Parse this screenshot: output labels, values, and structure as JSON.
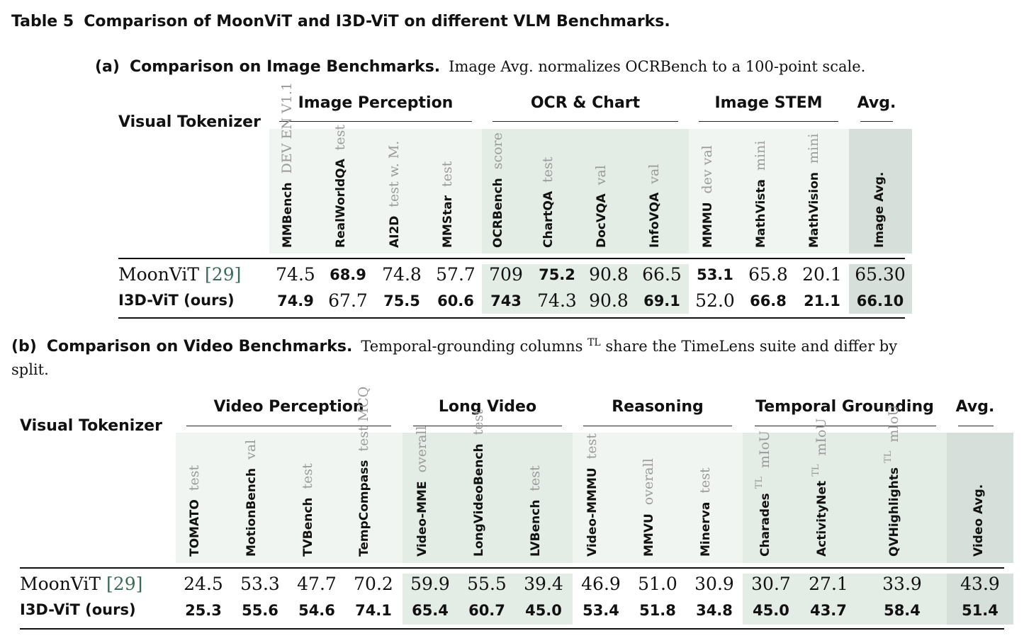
{
  "caption": {
    "label": "Table 5",
    "title": "Comparison of MoonViT and I3D-ViT on different VLM Benchmarks."
  },
  "image_table": {
    "tag": "(a)",
    "title": "Comparison on Image Benchmarks.",
    "description": "Image Avg. normalizes OCRBench to a 100-point scale.",
    "row_header": "Visual Tokenizer",
    "groups": [
      "Image Perception",
      "OCR & Chart",
      "Image STEM",
      "Avg."
    ],
    "columns": [
      {
        "name": "MMBench",
        "split": "DEV EN V1.1"
      },
      {
        "name": "RealWorldQA",
        "split": "test"
      },
      {
        "name": "AI2D",
        "split": "test w. M."
      },
      {
        "name": "MMStar",
        "split": "test"
      },
      {
        "name": "OCRBench",
        "split": "score"
      },
      {
        "name": "ChartQA",
        "split": "test"
      },
      {
        "name": "DocVQA",
        "split": "val"
      },
      {
        "name": "InfoVQA",
        "split": "val"
      },
      {
        "name": "MMMU",
        "split": "dev val"
      },
      {
        "name": "MathVista",
        "split": "mini"
      },
      {
        "name": "MathVision",
        "split": "mini"
      },
      {
        "name": "Image Avg.",
        "split": ""
      }
    ],
    "rows": [
      {
        "name": "MoonViT",
        "cite": "[29]",
        "values": [
          "74.5",
          "68.9",
          "74.8",
          "57.7",
          "709",
          "75.2",
          "90.8",
          "66.5",
          "53.1",
          "65.8",
          "20.1",
          "65.30"
        ],
        "bold": [
          false,
          true,
          false,
          false,
          false,
          true,
          false,
          false,
          true,
          false,
          false,
          false
        ]
      },
      {
        "name": "I3D-ViT (ours)",
        "cite": "",
        "values": [
          "74.9",
          "67.7",
          "75.5",
          "60.6",
          "743",
          "74.3",
          "90.8",
          "69.1",
          "52.0",
          "66.8",
          "21.1",
          "66.10"
        ],
        "bold": [
          true,
          false,
          true,
          true,
          true,
          false,
          false,
          true,
          false,
          true,
          true,
          true
        ]
      }
    ]
  },
  "video_table": {
    "tag": "(b)",
    "title": "Comparison on Video Benchmarks.",
    "description_pre": "Temporal-grounding columns",
    "sup_marker": "TL",
    "description_post": "share the TimeLens suite and differ by",
    "description_cont": "split.",
    "row_header": "Visual Tokenizer",
    "groups": [
      "Video Perception",
      "Long Video",
      "Reasoning",
      "Temporal Grounding",
      "Avg."
    ],
    "columns": [
      {
        "name": "TOMATO",
        "split": "test",
        "tl": ""
      },
      {
        "name": "MotionBench",
        "split": "val",
        "tl": ""
      },
      {
        "name": "TVBench",
        "split": "test",
        "tl": ""
      },
      {
        "name": "TempCompass",
        "split": "test MCQ",
        "tl": ""
      },
      {
        "name": "Video-MME",
        "split": "overall",
        "tl": ""
      },
      {
        "name": "LongVideoBench",
        "split": "test",
        "tl": ""
      },
      {
        "name": "LVBench",
        "split": "test",
        "tl": ""
      },
      {
        "name": "Video-MMMU",
        "split": "test",
        "tl": ""
      },
      {
        "name": "MMVU",
        "split": "overall",
        "tl": ""
      },
      {
        "name": "Minerva",
        "split": "test",
        "tl": ""
      },
      {
        "name": "Charades",
        "split": "mIoU",
        "tl": "TL"
      },
      {
        "name": "ActivityNet",
        "split": "mIoU",
        "tl": "TL"
      },
      {
        "name": "QVHighlights",
        "split": "mIoU",
        "tl": "TL"
      },
      {
        "name": "Video Avg.",
        "split": "",
        "tl": ""
      }
    ],
    "rows": [
      {
        "name": "MoonViT",
        "cite": "[29]",
        "values": [
          "24.5",
          "53.3",
          "47.7",
          "70.2",
          "59.9",
          "55.5",
          "39.4",
          "46.9",
          "51.0",
          "30.9",
          "30.7",
          "27.1",
          "33.9",
          "43.9"
        ],
        "bold": [
          false,
          false,
          false,
          false,
          false,
          false,
          false,
          false,
          false,
          false,
          false,
          false,
          false,
          false
        ]
      },
      {
        "name": "I3D-ViT (ours)",
        "cite": "",
        "values": [
          "25.3",
          "55.6",
          "54.6",
          "74.1",
          "65.4",
          "60.7",
          "45.0",
          "53.4",
          "51.8",
          "34.8",
          "45.0",
          "43.7",
          "58.4",
          "51.4"
        ],
        "bold": [
          true,
          true,
          true,
          true,
          true,
          true,
          true,
          true,
          true,
          true,
          true,
          true,
          true,
          true
        ]
      }
    ]
  },
  "colors": {
    "shade_light": "#f1f5f2",
    "shade_mid": "#e4ece6",
    "shade_dark": "#d6dfd9",
    "cite": "#3b6b57",
    "split_text": "#9a9a9a"
  }
}
